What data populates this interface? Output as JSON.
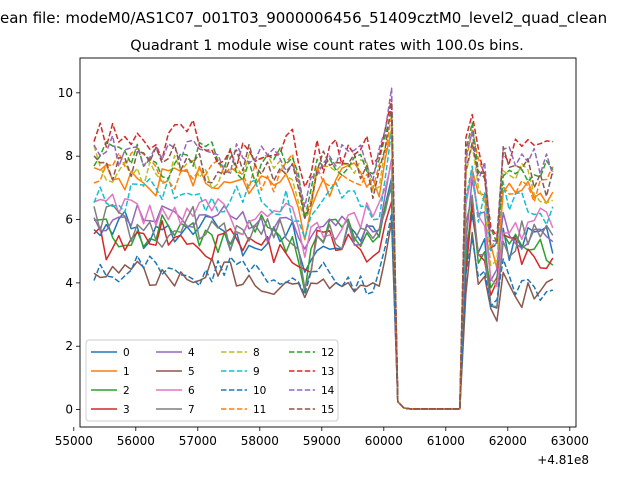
{
  "chart_data": {
    "type": "line",
    "suptitle": "ean file: modeM0/AS1C07_001T03_9000006456_51409cztM0_level2_quad_clean",
    "title": "Quadrant 1 module wise count rates with 100.0s bins.",
    "xlabel": "",
    "ylabel": "",
    "x_offset_label": "+4.81e8",
    "xlim": [
      55100,
      63100
    ],
    "ylim": [
      -0.55,
      11.1
    ],
    "x_ticks": [
      55000,
      56000,
      57000,
      58000,
      59000,
      60000,
      61000,
      62000,
      63000
    ],
    "x_tick_labels": [
      "55000",
      "56000",
      "57000",
      "58000",
      "59000",
      "60000",
      "61000",
      "62000",
      "63000"
    ],
    "y_ticks": [
      0,
      2,
      4,
      6,
      8,
      10
    ],
    "y_tick_labels": [
      "0",
      "2",
      "4",
      "6",
      "8",
      "10"
    ],
    "grid": false,
    "legend_position": "lower-left",
    "legend_columns": 4,
    "x_segment1": {
      "start": 55325,
      "end": 60125,
      "step": 100
    },
    "x_gap": [
      60225,
      60325,
      60425,
      60525,
      60625,
      60725,
      60825,
      60925,
      61025,
      61125,
      61225
    ],
    "x_segment2": {
      "start": 61325,
      "end": 62725,
      "step": 100
    },
    "series": [
      {
        "name": "0",
        "color": "#1f77b4",
        "dash": "solid",
        "level": 5.7,
        "amp": 0.45,
        "dipDepth": 1.5
      },
      {
        "name": "1",
        "color": "#ff7f0e",
        "dash": "solid",
        "level": 7.4,
        "amp": 0.45,
        "dipDepth": 1.9
      },
      {
        "name": "2",
        "color": "#2ca02c",
        "dash": "solid",
        "level": 5.7,
        "amp": 0.45,
        "dipDepth": 1.5
      },
      {
        "name": "3",
        "color": "#d62728",
        "dash": "solid",
        "level": 5.4,
        "amp": 0.5,
        "dipDepth": 1.4
      },
      {
        "name": "4",
        "color": "#9467bd",
        "dash": "solid",
        "level": 6.1,
        "amp": 0.4,
        "dipDepth": 1.5
      },
      {
        "name": "5",
        "color": "#8c564b",
        "dash": "solid",
        "level": 4.3,
        "amp": 0.4,
        "dipDepth": 1.0
      },
      {
        "name": "6",
        "color": "#e377c2",
        "dash": "solid",
        "level": 6.3,
        "amp": 0.4,
        "dipDepth": 1.6
      },
      {
        "name": "7",
        "color": "#7f7f7f",
        "dash": "solid",
        "level": 5.8,
        "amp": 0.5,
        "dipDepth": 1.6
      },
      {
        "name": "8",
        "color": "#bcbd22",
        "dash": "dashed",
        "level": 7.6,
        "amp": 0.5,
        "dipDepth": 2.0
      },
      {
        "name": "9",
        "color": "#17becf",
        "dash": "dashed",
        "level": 6.9,
        "amp": 0.5,
        "dipDepth": 1.8
      },
      {
        "name": "10",
        "color": "#1f77b4",
        "dash": "dashed",
        "level": 4.5,
        "amp": 0.35,
        "dipDepth": 1.0
      },
      {
        "name": "11",
        "color": "#ff7f0e",
        "dash": "dashed",
        "level": 7.7,
        "amp": 0.5,
        "dipDepth": 2.0
      },
      {
        "name": "12",
        "color": "#2ca02c",
        "dash": "dashed",
        "level": 8.0,
        "amp": 0.45,
        "dipDepth": 2.1
      },
      {
        "name": "13",
        "color": "#d62728",
        "dash": "dashed",
        "level": 8.5,
        "amp": 0.55,
        "dipDepth": 2.2
      },
      {
        "name": "14",
        "color": "#9467bd",
        "dash": "dashed",
        "level": 8.2,
        "amp": 0.5,
        "dipDepth": 2.1
      },
      {
        "name": "15",
        "color": "#8c564b",
        "dash": "dashed",
        "level": 7.9,
        "amp": 0.5,
        "dipDepth": 2.0
      }
    ]
  }
}
